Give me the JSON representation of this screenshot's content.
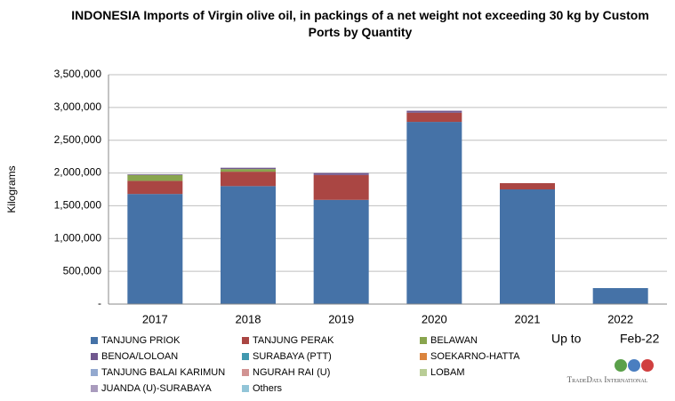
{
  "chart_data": {
    "type": "stacked_bar",
    "title": "INDONESIA Imports of Virgin olive oil, in packings of a net weight not exceeding 30 kg by Custom Ports by Quantity",
    "y_label": "Kilograms",
    "categories": [
      "2017",
      "2018",
      "2019",
      "2020",
      "2021",
      "2022"
    ],
    "series": [
      {
        "name": "TANJUNG PRIOK",
        "color": "#4572a7",
        "values": [
          1680000,
          1800000,
          1590000,
          2780000,
          1750000,
          244000
        ]
      },
      {
        "name": "TANJUNG PERAK",
        "color": "#aa4643",
        "values": [
          200000,
          220000,
          380000,
          140000,
          95000,
          0
        ]
      },
      {
        "name": "BELAWAN",
        "color": "#89a54e",
        "values": [
          90000,
          40000,
          0,
          0,
          0,
          0
        ]
      },
      {
        "name": "BENOA/LOLOAN",
        "color": "#71588f",
        "values": [
          10000,
          20000,
          30000,
          30000,
          0,
          0
        ]
      },
      {
        "name": "SURABAYA (PTT)",
        "color": "#4198af",
        "values": [
          0,
          0,
          0,
          0,
          0,
          0
        ]
      },
      {
        "name": "SOEKARNO-HATTA",
        "color": "#db843d",
        "values": [
          0,
          0,
          0,
          0,
          0,
          0
        ]
      },
      {
        "name": "TANJUNG BALAI KARIMUN",
        "color": "#93a9cf",
        "values": [
          0,
          0,
          0,
          0,
          0,
          0
        ]
      },
      {
        "name": "NGURAH RAI (U)",
        "color": "#d19392",
        "values": [
          0,
          0,
          0,
          0,
          0,
          0
        ]
      },
      {
        "name": "LOBAM",
        "color": "#b9cd96",
        "values": [
          0,
          0,
          0,
          0,
          0,
          0
        ]
      },
      {
        "name": "JUANDA (U)-SURABAYA",
        "color": "#a99bbd",
        "values": [
          0,
          0,
          0,
          0,
          0,
          0
        ]
      },
      {
        "name": "Others",
        "color": "#92c5d8",
        "values": [
          0,
          0,
          0,
          0,
          0,
          0
        ]
      }
    ],
    "ylim": [
      0,
      3500000
    ],
    "yticks": [
      {
        "value": 0,
        "label": "-"
      },
      {
        "value": 500000,
        "label": "500,000"
      },
      {
        "value": 1000000,
        "label": "1,000,000"
      },
      {
        "value": 1500000,
        "label": "1,500,000"
      },
      {
        "value": 2000000,
        "label": "2,000,000"
      },
      {
        "value": 2500000,
        "label": "2,500,000"
      },
      {
        "value": 3000000,
        "label": "3,000,000"
      },
      {
        "value": 3500000,
        "label": "3,500,000"
      }
    ],
    "grid": true,
    "annotations": [
      "Up to",
      "Feb-22"
    ],
    "logo": "TradeData International"
  }
}
